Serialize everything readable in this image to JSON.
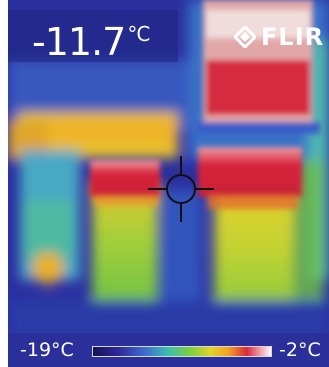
{
  "spot_reading": {
    "value": "-11.7",
    "unit": "°C"
  },
  "brand": {
    "name": "FLIR"
  },
  "scale": {
    "min_label": "-19°C",
    "max_label": "-2°C",
    "palette": [
      "#1b1466",
      "#2c2aa0",
      "#3f57c8",
      "#2d9ad6",
      "#3fc2a8",
      "#7fcf3a",
      "#d6d62a",
      "#f0a321",
      "#e25a1f",
      "#d3203a",
      "#e87a8a",
      "#ffffff"
    ]
  },
  "colors": {
    "cold": "#2b2f9e",
    "mid": "#5fbf44",
    "warm": "#e3c62b",
    "hot": "#d42a3c"
  }
}
